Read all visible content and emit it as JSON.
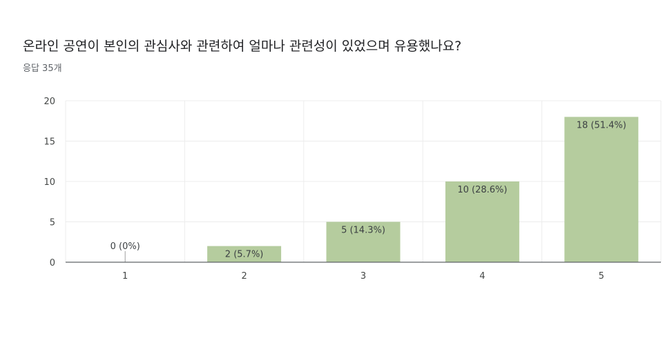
{
  "header": {
    "question": "온라인 공연이 본인의 관심사와 관련하여 얼마나 관련성이 있었으며 유용했나요?",
    "response_count": "응답 35개"
  },
  "colors": {
    "bar": "#b5cc9e",
    "grid": "#ececec",
    "axis": "#5f6368"
  },
  "chart_data": {
    "type": "bar",
    "categories": [
      "1",
      "2",
      "3",
      "4",
      "5"
    ],
    "values": [
      0,
      2,
      5,
      10,
      18
    ],
    "data_labels": [
      "0 (0%)",
      "2 (5.7%)",
      "5 (14.3%)",
      "10 (28.6%)",
      "18 (51.4%)"
    ],
    "yticks": [
      0,
      5,
      10,
      15,
      20
    ],
    "ylim": [
      0,
      20
    ],
    "grid": true,
    "legend": "none"
  }
}
